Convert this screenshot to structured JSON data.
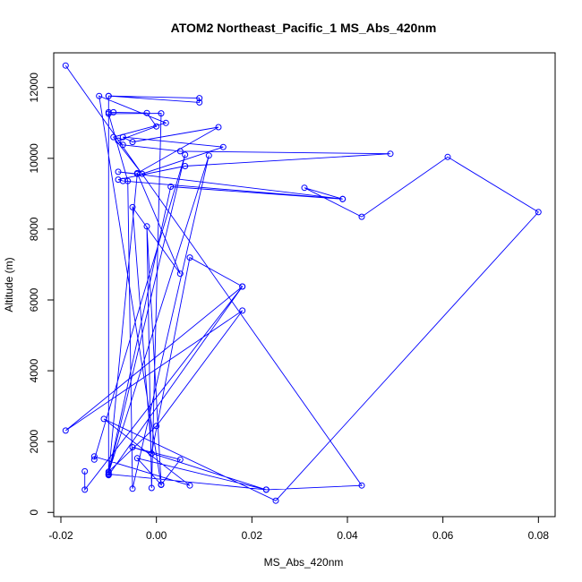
{
  "chart_data": {
    "type": "line",
    "title": "ATOM2 Northeast_Pacific_1 MS_Abs_420nm",
    "xlabel": "MS_Abs_420nm",
    "ylabel": "Altitude (m)",
    "xlim": [
      -0.0215,
      0.0835
    ],
    "ylim": [
      -120,
      12980
    ],
    "xticks": [
      -0.02,
      0.0,
      0.02,
      0.04,
      0.06,
      0.08
    ],
    "xtick_labels": [
      "-0.02",
      "0.00",
      "0.02",
      "0.04",
      "0.06",
      "0.08"
    ],
    "yticks": [
      0,
      2000,
      4000,
      6000,
      8000,
      10000,
      12000
    ],
    "ytick_labels": [
      "0",
      "2000",
      "4000",
      "6000",
      "8000",
      "10000",
      "12000"
    ],
    "series_color": "#0000ff",
    "points": [
      [
        -0.019,
        12620
      ],
      [
        0.043,
        760
      ],
      [
        0.023,
        640
      ],
      [
        -0.01,
        1080
      ],
      [
        -0.01,
        1150
      ],
      [
        0.0,
        2440
      ],
      [
        0.018,
        5700
      ],
      [
        -0.019,
        2310
      ],
      [
        0.018,
        6380
      ],
      [
        -0.01,
        1050
      ],
      [
        -0.01,
        11760
      ],
      [
        0.009,
        11580
      ],
      [
        0.009,
        11700
      ],
      [
        -0.01,
        11760
      ],
      [
        -0.01,
        11300
      ],
      [
        -0.009,
        11300
      ],
      [
        -0.002,
        11280
      ],
      [
        0.0,
        10900
      ],
      [
        -0.008,
        10500
      ],
      [
        -0.007,
        10380
      ],
      [
        0.005,
        10200
      ],
      [
        0.049,
        10130
      ],
      [
        0.006,
        9780
      ],
      [
        -0.008,
        9400
      ],
      [
        -0.007,
        9360
      ],
      [
        0.039,
        8850
      ],
      [
        -0.008,
        9620
      ],
      [
        -0.004,
        9560
      ],
      [
        -0.01,
        1070
      ],
      [
        0.006,
        10100
      ],
      [
        -0.013,
        1490
      ],
      [
        -0.013,
        1580
      ],
      [
        0.007,
        760
      ],
      [
        -0.011,
        2640
      ],
      [
        0.025,
        330
      ],
      [
        0.08,
        8480
      ],
      [
        0.061,
        10040
      ],
      [
        0.043,
        8350
      ],
      [
        0.031,
        9170
      ],
      [
        0.039,
        8850
      ],
      [
        0.003,
        9200
      ],
      [
        -0.01,
        1120
      ],
      [
        0.011,
        10080
      ],
      [
        -0.005,
        670
      ],
      [
        -0.006,
        9360
      ],
      [
        -0.01,
        11260
      ],
      [
        0.001,
        11270
      ],
      [
        -0.001,
        690
      ],
      [
        -0.002,
        8080
      ],
      [
        0.001,
        780
      ],
      [
        0.005,
        1490
      ],
      [
        -0.005,
        1840
      ],
      [
        0.023,
        640
      ],
      [
        -0.004,
        1530
      ],
      [
        0.001,
        780
      ],
      [
        0.001,
        780
      ],
      [
        -0.012,
        11760
      ],
      [
        0.002,
        11000
      ],
      [
        -0.009,
        10600
      ],
      [
        -0.003,
        9560
      ],
      [
        0.014,
        10320
      ],
      [
        -0.007,
        10600
      ],
      [
        -0.005,
        10460
      ],
      [
        0.013,
        10880
      ],
      [
        -0.004,
        9580
      ],
      [
        0.005,
        6740
      ],
      [
        -0.005,
        8620
      ],
      [
        -0.001,
        1660
      ],
      [
        0.007,
        7200
      ],
      [
        0.018,
        6380
      ],
      [
        -0.015,
        640
      ],
      [
        -0.015,
        1160
      ]
    ]
  }
}
